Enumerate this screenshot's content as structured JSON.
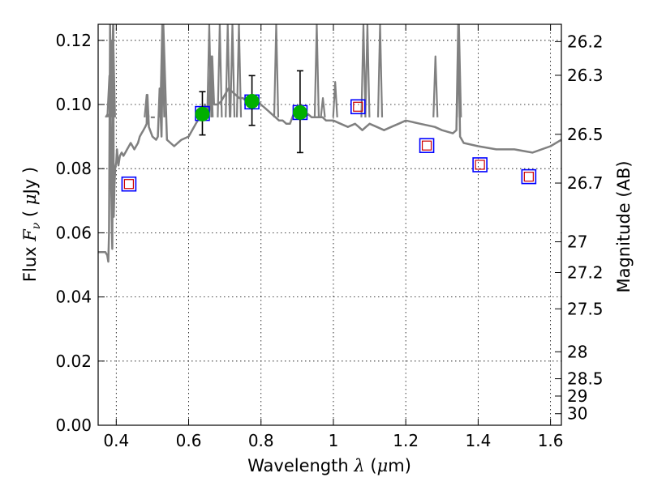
{
  "chart_data": {
    "type": "scatter",
    "title": "",
    "xlabel": {
      "prefix": "Wavelength",
      "symbol": "λ",
      "unit_open": "(",
      "unit_mu": "μ",
      "unit_rest": "m)"
    },
    "ylabel": {
      "prefix": "Flux",
      "symbol": "F",
      "sub": "ν",
      "unit_open": "(",
      "unit_mu": "μ",
      "unit_rest": "Jy",
      "unit_close": ")"
    },
    "y2label": "Magnitude (AB)",
    "xlim": [
      0.35,
      1.63
    ],
    "ylim": [
      0.0,
      0.125
    ],
    "grid": true,
    "x_ticks": [
      0.4,
      0.6,
      0.8,
      1.0,
      1.2,
      1.4,
      1.6
    ],
    "x_tick_labels": [
      "0.4",
      "0.6",
      "0.8",
      "1",
      "1.2",
      "1.4",
      "1.6"
    ],
    "y_ticks": [
      0.0,
      0.02,
      0.04,
      0.06,
      0.08,
      0.1,
      0.12
    ],
    "y_tick_labels": [
      "0.00",
      "0.02",
      "0.04",
      "0.06",
      "0.08",
      "0.10",
      "0.12"
    ],
    "y2_ticks": [
      {
        "label": "26.2",
        "flux": 0.1196
      },
      {
        "label": "26.3",
        "flux": 0.1091
      },
      {
        "label": "26.5",
        "flux": 0.0907
      },
      {
        "label": "26.7",
        "flux": 0.0755
      },
      {
        "label": "27",
        "flux": 0.0572
      },
      {
        "label": "27.2",
        "flux": 0.0476
      },
      {
        "label": "27.5",
        "flux": 0.0363
      },
      {
        "label": "28",
        "flux": 0.0229
      },
      {
        "label": "28.5",
        "flux": 0.0145
      },
      {
        "label": "29",
        "flux": 0.0091
      },
      {
        "label": "30",
        "flux": 0.0036
      }
    ],
    "colors": {
      "model": "#808080",
      "box": "#0000ff",
      "inner": "#cc0000",
      "observed": "#00b000",
      "errorbar": "#000000"
    },
    "series": [
      {
        "kind": "line",
        "x": [
          0.35,
          0.365,
          0.37,
          0.375,
          0.378,
          0.38,
          0.383,
          0.386,
          0.389,
          0.392,
          0.393,
          0.395,
          0.397,
          0.4,
          0.402,
          0.404,
          0.406,
          0.41,
          0.415,
          0.42,
          0.425,
          0.43,
          0.435,
          0.44,
          0.445,
          0.45,
          0.455,
          0.46,
          0.465,
          0.47,
          0.475,
          0.48,
          0.484,
          0.486,
          0.49,
          0.5,
          0.51,
          0.515,
          0.52,
          0.525,
          0.53,
          0.54,
          0.55,
          0.56,
          0.57,
          0.58,
          0.6,
          0.62,
          0.64,
          0.645,
          0.65,
          0.655,
          0.66,
          0.665,
          0.67,
          0.68,
          0.69,
          0.7,
          0.71,
          0.72,
          0.73,
          0.74,
          0.75,
          0.76,
          0.77,
          0.78,
          0.8,
          0.81,
          0.82,
          0.83,
          0.84,
          0.85,
          0.86,
          0.87,
          0.88,
          0.89,
          0.9,
          0.91,
          0.92,
          0.93,
          0.94,
          0.95,
          0.96,
          0.97,
          0.98,
          0.99,
          1.0,
          1.02,
          1.04,
          1.06,
          1.07,
          1.08,
          1.09,
          1.1,
          1.12,
          1.14,
          1.16,
          1.18,
          1.2,
          1.24,
          1.28,
          1.3,
          1.33,
          1.34,
          1.345,
          1.35,
          1.36,
          1.4,
          1.45,
          1.5,
          1.55,
          1.6,
          1.63
        ],
        "y": [
          0.054,
          0.054,
          0.054,
          0.053,
          0.051,
          0.06,
          0.125,
          0.075,
          0.055,
          0.125,
          0.065,
          0.075,
          0.08,
          0.082,
          0.086,
          0.083,
          0.081,
          0.084,
          0.085,
          0.084,
          0.085,
          0.086,
          0.087,
          0.088,
          0.087,
          0.086,
          0.087,
          0.088,
          0.09,
          0.091,
          0.092,
          0.093,
          0.094,
          0.103,
          0.093,
          0.09,
          0.089,
          0.09,
          0.105,
          0.09,
          0.125,
          0.089,
          0.088,
          0.087,
          0.088,
          0.089,
          0.09,
          0.094,
          0.098,
          0.1,
          0.098,
          0.097,
          0.1,
          0.115,
          0.1,
          0.1,
          0.101,
          0.103,
          0.105,
          0.104,
          0.103,
          0.102,
          0.102,
          0.101,
          0.101,
          0.102,
          0.1,
          0.099,
          0.098,
          0.097,
          0.096,
          0.095,
          0.095,
          0.094,
          0.094,
          0.097,
          0.098,
          0.097,
          0.096,
          0.097,
          0.096,
          0.096,
          0.096,
          0.096,
          0.095,
          0.095,
          0.095,
          0.094,
          0.093,
          0.094,
          0.093,
          0.092,
          0.093,
          0.094,
          0.093,
          0.092,
          0.093,
          0.094,
          0.095,
          0.094,
          0.093,
          0.092,
          0.091,
          0.092,
          0.125,
          0.09,
          0.088,
          0.087,
          0.086,
          0.086,
          0.085,
          0.087,
          0.089
        ]
      },
      {
        "kind": "spikes",
        "x": [
          0.376,
          0.381,
          0.388,
          0.391,
          0.484,
          0.501,
          0.527,
          0.657,
          0.661,
          0.686,
          0.708,
          0.721,
          0.739,
          0.842,
          0.954,
          0.971,
          1.005,
          1.083,
          1.094,
          1.129,
          1.282,
          1.347
        ],
        "y": [
          0.097,
          0.109,
          0.12,
          0.125,
          0.103,
          0.096,
          0.125,
          0.125,
          0.115,
          0.125,
          0.125,
          0.125,
          0.125,
          0.125,
          0.125,
          0.102,
          0.107,
          0.125,
          0.125,
          0.125,
          0.115,
          0.125
        ]
      },
      {
        "kind": "photometry",
        "x": [
          0.435,
          0.638,
          0.775,
          0.908,
          1.068,
          1.258,
          1.405,
          1.54
        ],
        "y": [
          0.0752,
          0.0972,
          0.1008,
          0.0975,
          0.0993,
          0.0872,
          0.0812,
          0.0775
        ]
      },
      {
        "kind": "observed",
        "x": [
          0.638,
          0.775,
          0.908
        ],
        "y": [
          0.097,
          0.101,
          0.0975
        ],
        "yerr_low": [
          0.0905,
          0.0935,
          0.085
        ],
        "yerr_high": [
          0.104,
          0.109,
          0.1105
        ]
      }
    ]
  }
}
